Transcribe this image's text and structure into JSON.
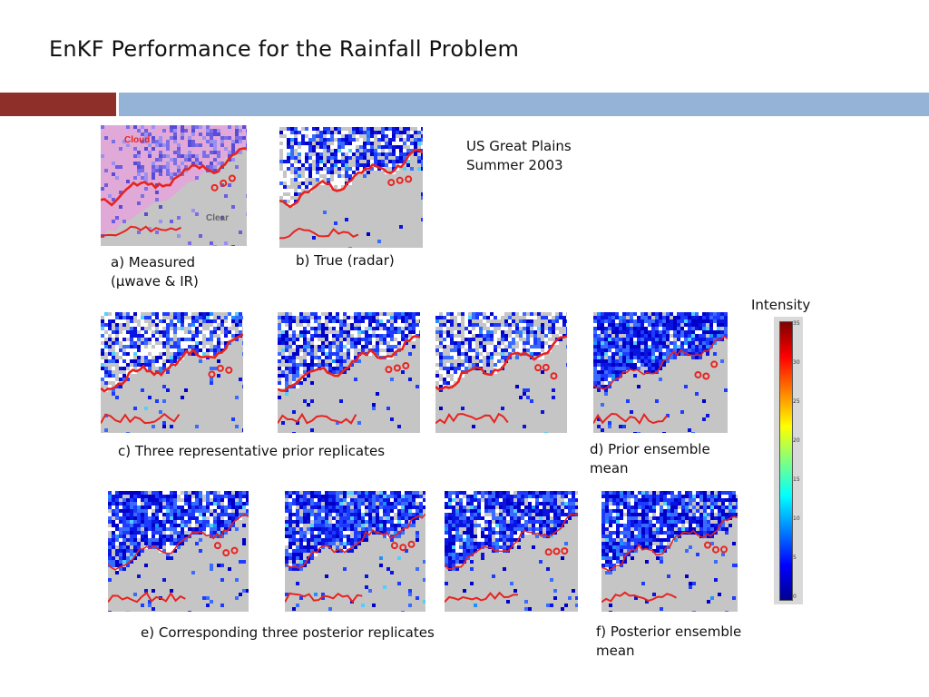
{
  "slide": {
    "title": "EnKF Performance for the Rainfall Problem"
  },
  "panels": {
    "a": {
      "cloud_label": "Cloud",
      "clear_label": "Clear"
    }
  },
  "captions": {
    "a": "a) Measured\n(µwave & IR)",
    "b": "b) True (radar)",
    "region": "US Great Plains\nSummer 2003",
    "c": "c) Three representative prior replicates",
    "d": "d) Prior ensemble\nmean",
    "e": "e) Corresponding three posterior replicates",
    "f": "f) Posterior ensemble\nmean"
  },
  "colorbar": {
    "label": "Intensity",
    "ticks": [
      "35",
      "30",
      "25",
      "20",
      "15",
      "10",
      "5",
      "0"
    ],
    "colors": [
      "#7f0000",
      "#ff0000",
      "#ff8000",
      "#ffff00",
      "#80ff80",
      "#00ffff",
      "#0080ff",
      "#0000ff",
      "#00008f"
    ]
  },
  "colors": {
    "accent": "#8e2f2a",
    "band": "#95b3d7",
    "contour": "#e8231f",
    "land": "#c5c5c5"
  }
}
